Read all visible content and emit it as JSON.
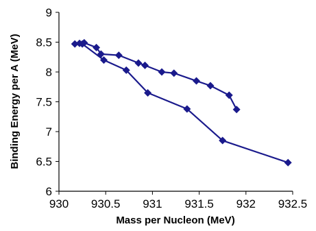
{
  "chart_data": {
    "type": "line",
    "title": "",
    "xlabel": "Mass per Nucleon (MeV)",
    "ylabel": "Binding Energy per A (MeV)",
    "xlim": [
      930,
      932.5
    ],
    "ylim": [
      6,
      9
    ],
    "x_ticks": [
      "930",
      "930.5",
      "931",
      "931.5",
      "932",
      "932.5"
    ],
    "y_ticks": [
      "6",
      "6.5",
      "7",
      "7.5",
      "8",
      "8.5",
      "9"
    ],
    "grid": false,
    "legend": "none",
    "series_color": "#1a1a8c",
    "series": [
      {
        "x": [
          930.17,
          930.22,
          930.27,
          930.4,
          930.45,
          930.64,
          930.85,
          930.92,
          931.1,
          931.23,
          931.47,
          931.62,
          931.82,
          931.9
        ],
        "y": [
          8.47,
          8.48,
          8.49,
          8.41,
          8.3,
          8.28,
          8.15,
          8.11,
          8.0,
          7.98,
          7.85,
          7.77,
          7.61,
          7.37
        ]
      },
      {
        "x": [
          930.25,
          930.48,
          930.72,
          930.95,
          931.37,
          931.75,
          932.45
        ],
        "y": [
          8.47,
          8.2,
          8.03,
          7.65,
          7.38,
          6.85,
          6.48
        ]
      }
    ]
  }
}
